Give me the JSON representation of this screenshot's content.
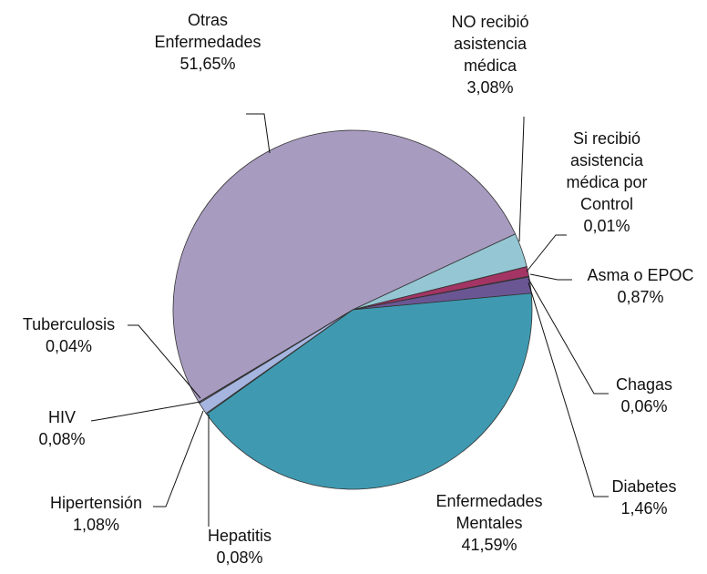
{
  "chart_data": {
    "type": "pie",
    "categories": [
      "NO recibió asistencia médica",
      "Si recibió asistencia médica por Control",
      "Asma o EPOC",
      "Chagas",
      "Diabetes",
      "Enfermedades Mentales",
      "Hepatitis",
      "Hipertensión",
      "HIV",
      "Tuberculosis",
      "Otras Enfermedades"
    ],
    "values": [
      3.08,
      0.01,
      0.87,
      0.06,
      1.46,
      41.59,
      0.08,
      1.08,
      0.08,
      0.04,
      51.65
    ],
    "value_labels": [
      "3,08%",
      "0,01%",
      "0,87%",
      "0,06%",
      "1,46%",
      "41,59%",
      "0,08%",
      "1,08%",
      "0,08%",
      "0,04%",
      "51,65%"
    ],
    "colors": [
      "#95c6d3",
      "#7a3a5a",
      "#a33464",
      "#3d3a5e",
      "#6b5694",
      "#3f9ab1",
      "#8fb0c8",
      "#a6b5df",
      "#c3c9e6",
      "#4a4a7a",
      "#a89bc0"
    ]
  }
}
